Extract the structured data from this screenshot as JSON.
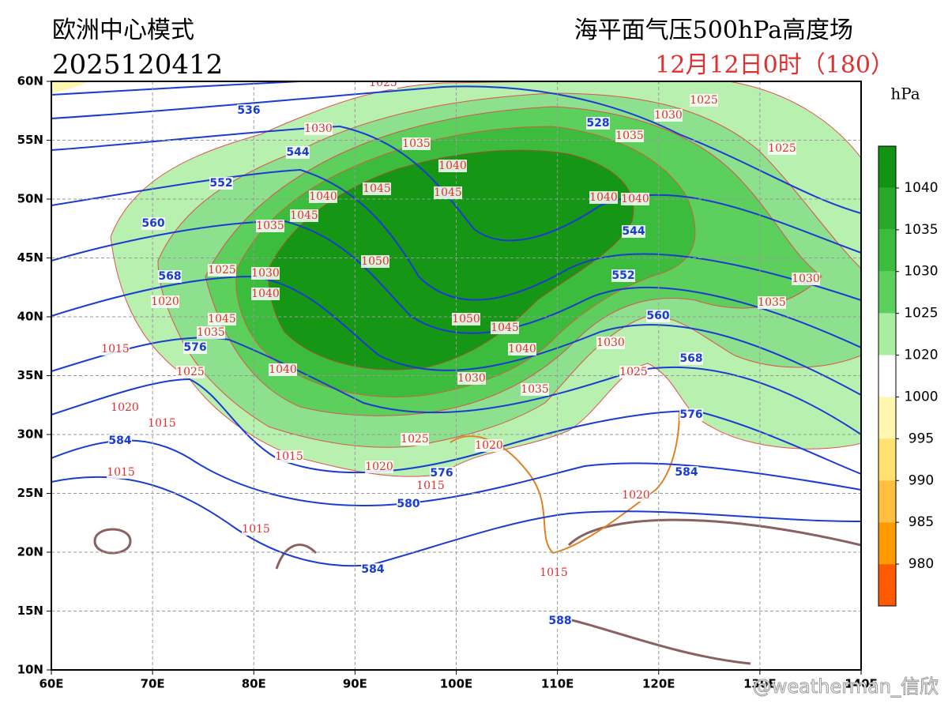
{
  "header": {
    "model": "欧洲中心模式",
    "run": "2025120412",
    "product": "海平面气压500hPa高度场",
    "valid": "12月12日0时（180）"
  },
  "map": {
    "xlim": [
      60,
      140
    ],
    "ylim": [
      10,
      60
    ],
    "xticks": [
      {
        "value": 60,
        "label": "60E"
      },
      {
        "value": 70,
        "label": "70E"
      },
      {
        "value": 80,
        "label": "80E"
      },
      {
        "value": 90,
        "label": "90E"
      },
      {
        "value": 100,
        "label": "100E"
      },
      {
        "value": 110,
        "label": "110E"
      },
      {
        "value": 120,
        "label": "120E"
      },
      {
        "value": 130,
        "label": "130E"
      },
      {
        "value": 140,
        "label": "140E"
      }
    ],
    "yticks": [
      {
        "value": 10,
        "label": "10N"
      },
      {
        "value": 15,
        "label": "15N"
      },
      {
        "value": 20,
        "label": "20N"
      },
      {
        "value": 25,
        "label": "25N"
      },
      {
        "value": 30,
        "label": "30N"
      },
      {
        "value": 35,
        "label": "35N"
      },
      {
        "value": 40,
        "label": "40N"
      },
      {
        "value": 45,
        "label": "45N"
      },
      {
        "value": 50,
        "label": "50N"
      },
      {
        "value": 55,
        "label": "55N"
      },
      {
        "value": 60,
        "label": "60N"
      }
    ],
    "pressure_labels": [
      1025,
      1030,
      1035,
      1040,
      1045,
      1045,
      1040,
      1045,
      1035,
      1050,
      1025,
      1030,
      1040,
      1020,
      1045,
      1035,
      1015,
      1025,
      1040,
      1050,
      1045,
      1040,
      1030,
      1035,
      1025,
      1020,
      1020,
      1015,
      1020,
      1015,
      1015,
      1015,
      1015,
      1020,
      1015,
      1025,
      1030,
      1035,
      1040,
      1040,
      1025,
      1030,
      1035,
      1030,
      1025
    ],
    "height_labels": [
      536,
      528,
      544,
      552,
      544,
      560,
      552,
      568,
      560,
      576,
      568,
      576,
      584,
      576,
      584,
      580,
      584,
      588
    ]
  },
  "colorbar": {
    "unit": "hPa",
    "labels": [
      1040,
      1035,
      1030,
      1025,
      1020,
      1000,
      995,
      990,
      985,
      980
    ]
  },
  "watermark": "@weatherman_信欣"
}
